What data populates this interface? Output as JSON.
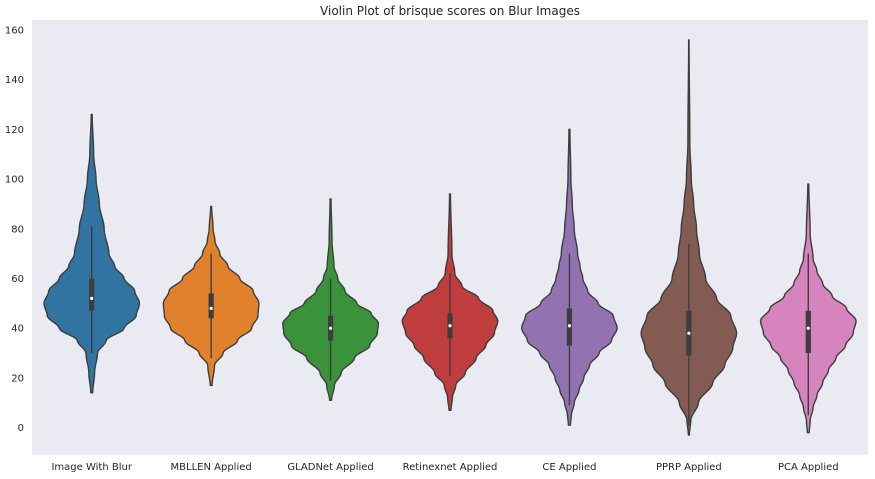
{
  "chart_data": {
    "type": "violin",
    "title": "Violin Plot of brisque scores on Blur Images",
    "xlabel": "",
    "ylabel": "",
    "ylim": [
      -11,
      164
    ],
    "yticks": [
      0,
      20,
      40,
      60,
      80,
      100,
      120,
      140,
      160
    ],
    "grid": false,
    "background": "#eaeaf2",
    "categories": [
      "Image With Blur",
      "MBLLEN Applied",
      "GLADNet Applied",
      "Retinexnet Applied",
      "CE Applied",
      "PPRP Applied",
      "PCA Applied"
    ],
    "colors": [
      "#3274a1",
      "#e1812c",
      "#3a923a",
      "#c03d3e",
      "#9372b2",
      "#845b53",
      "#d684bd"
    ],
    "violins": [
      {
        "min": 14,
        "max": 126,
        "q1": 47,
        "median": 52,
        "q3": 60,
        "whisker_low": 30,
        "whisker_high": 81,
        "profile": [
          [
            14,
            0.02
          ],
          [
            22,
            0.06
          ],
          [
            30,
            0.12
          ],
          [
            35,
            0.3
          ],
          [
            40,
            0.68
          ],
          [
            45,
            0.93
          ],
          [
            50,
            1.0
          ],
          [
            55,
            0.9
          ],
          [
            60,
            0.68
          ],
          [
            65,
            0.48
          ],
          [
            70,
            0.36
          ],
          [
            80,
            0.26
          ],
          [
            90,
            0.16
          ],
          [
            100,
            0.09
          ],
          [
            110,
            0.04
          ],
          [
            126,
            0.01
          ]
        ]
      },
      {
        "min": 17,
        "max": 89,
        "q1": 44,
        "median": 48,
        "q3": 54,
        "whisker_low": 28,
        "whisker_high": 70,
        "profile": [
          [
            17,
            0.02
          ],
          [
            25,
            0.07
          ],
          [
            30,
            0.25
          ],
          [
            35,
            0.55
          ],
          [
            40,
            0.85
          ],
          [
            45,
            0.98
          ],
          [
            50,
            1.0
          ],
          [
            55,
            0.88
          ],
          [
            60,
            0.6
          ],
          [
            65,
            0.35
          ],
          [
            70,
            0.18
          ],
          [
            75,
            0.08
          ],
          [
            80,
            0.04
          ],
          [
            89,
            0.01
          ]
        ]
      },
      {
        "min": 11,
        "max": 92,
        "q1": 35,
        "median": 40,
        "q3": 45,
        "whisker_low": 19,
        "whisker_high": 60,
        "profile": [
          [
            11,
            0.02
          ],
          [
            17,
            0.08
          ],
          [
            22,
            0.22
          ],
          [
            28,
            0.5
          ],
          [
            33,
            0.82
          ],
          [
            38,
            0.98
          ],
          [
            42,
            1.0
          ],
          [
            46,
            0.85
          ],
          [
            50,
            0.55
          ],
          [
            55,
            0.3
          ],
          [
            60,
            0.15
          ],
          [
            65,
            0.07
          ],
          [
            75,
            0.03
          ],
          [
            92,
            0.01
          ]
        ]
      },
      {
        "min": 7,
        "max": 94,
        "q1": 36,
        "median": 41,
        "q3": 46,
        "whisker_low": 21,
        "whisker_high": 62,
        "profile": [
          [
            7,
            0.02
          ],
          [
            12,
            0.05
          ],
          [
            17,
            0.12
          ],
          [
            22,
            0.32
          ],
          [
            28,
            0.55
          ],
          [
            33,
            0.75
          ],
          [
            38,
            0.93
          ],
          [
            43,
            1.0
          ],
          [
            47,
            0.9
          ],
          [
            52,
            0.6
          ],
          [
            57,
            0.25
          ],
          [
            62,
            0.1
          ],
          [
            70,
            0.04
          ],
          [
            94,
            0.01
          ]
        ]
      },
      {
        "min": 1,
        "max": 120,
        "q1": 33,
        "median": 41,
        "q3": 48,
        "whisker_low": 9,
        "whisker_high": 70,
        "profile": [
          [
            1,
            0.02
          ],
          [
            5,
            0.04
          ],
          [
            10,
            0.1
          ],
          [
            15,
            0.2
          ],
          [
            20,
            0.3
          ],
          [
            25,
            0.42
          ],
          [
            30,
            0.62
          ],
          [
            35,
            0.88
          ],
          [
            40,
            1.0
          ],
          [
            45,
            0.92
          ],
          [
            50,
            0.6
          ],
          [
            55,
            0.38
          ],
          [
            60,
            0.28
          ],
          [
            65,
            0.22
          ],
          [
            70,
            0.17
          ],
          [
            80,
            0.1
          ],
          [
            90,
            0.06
          ],
          [
            100,
            0.03
          ],
          [
            120,
            0.01
          ]
        ]
      },
      {
        "min": -3,
        "max": 156,
        "q1": 29,
        "median": 38,
        "q3": 47,
        "whisker_low": 1,
        "whisker_high": 74,
        "profile": [
          [
            -3,
            0.01
          ],
          [
            3,
            0.04
          ],
          [
            10,
            0.2
          ],
          [
            18,
            0.5
          ],
          [
            25,
            0.75
          ],
          [
            32,
            0.92
          ],
          [
            38,
            1.0
          ],
          [
            45,
            0.88
          ],
          [
            52,
            0.58
          ],
          [
            60,
            0.35
          ],
          [
            70,
            0.22
          ],
          [
            80,
            0.16
          ],
          [
            90,
            0.1
          ],
          [
            100,
            0.05
          ],
          [
            115,
            0.02
          ],
          [
            156,
            0.004
          ]
        ]
      },
      {
        "min": -2,
        "max": 98,
        "q1": 30,
        "median": 40,
        "q3": 47,
        "whisker_low": 5,
        "whisker_high": 70,
        "profile": [
          [
            -2,
            0.02
          ],
          [
            3,
            0.04
          ],
          [
            8,
            0.1
          ],
          [
            13,
            0.18
          ],
          [
            18,
            0.3
          ],
          [
            23,
            0.42
          ],
          [
            28,
            0.58
          ],
          [
            33,
            0.78
          ],
          [
            38,
            0.94
          ],
          [
            43,
            1.0
          ],
          [
            48,
            0.8
          ],
          [
            53,
            0.5
          ],
          [
            58,
            0.3
          ],
          [
            63,
            0.18
          ],
          [
            68,
            0.1
          ],
          [
            78,
            0.04
          ],
          [
            98,
            0.01
          ]
        ]
      }
    ]
  }
}
